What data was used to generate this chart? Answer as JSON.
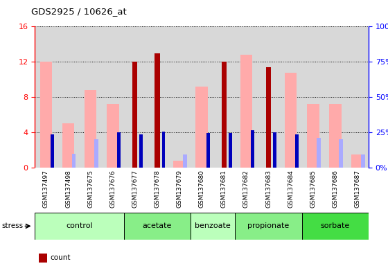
{
  "title": "GDS2925 / 10626_at",
  "samples": [
    "GSM137497",
    "GSM137498",
    "GSM137675",
    "GSM137676",
    "GSM137677",
    "GSM137678",
    "GSM137679",
    "GSM137680",
    "GSM137681",
    "GSM137682",
    "GSM137683",
    "GSM137684",
    "GSM137685",
    "GSM137686",
    "GSM137687"
  ],
  "count_values": [
    0,
    0,
    0,
    0,
    12.0,
    13.0,
    0,
    0,
    12.0,
    0,
    11.4,
    0,
    0,
    0,
    0
  ],
  "rank_values": [
    3.8,
    0,
    0,
    4.0,
    3.8,
    4.1,
    0,
    3.9,
    3.9,
    4.2,
    4.0,
    3.8,
    0,
    0,
    0
  ],
  "value_absent": [
    12.0,
    5.0,
    8.8,
    7.2,
    0,
    0,
    0.8,
    9.2,
    0,
    12.8,
    0,
    10.8,
    7.2,
    7.2,
    1.5
  ],
  "rank_absent": [
    0,
    1.6,
    3.2,
    0,
    0,
    0,
    1.5,
    0,
    0,
    0,
    0,
    0,
    3.4,
    3.2,
    1.5
  ],
  "groups": [
    {
      "label": "control",
      "start": 0,
      "end": 4,
      "color": "#bbffbb"
    },
    {
      "label": "acetate",
      "start": 4,
      "end": 7,
      "color": "#88ee88"
    },
    {
      "label": "benzoate",
      "start": 7,
      "end": 9,
      "color": "#bbffbb"
    },
    {
      "label": "propionate",
      "start": 9,
      "end": 12,
      "color": "#88ee88"
    },
    {
      "label": "sorbate",
      "start": 12,
      "end": 15,
      "color": "#44dd44"
    }
  ],
  "ylim_left": [
    0,
    16
  ],
  "ylim_right": [
    0,
    100
  ],
  "yticks_left": [
    0,
    4,
    8,
    12,
    16
  ],
  "yticks_right": [
    0,
    25,
    50,
    75,
    100
  ],
  "count_color": "#aa0000",
  "rank_color": "#0000bb",
  "value_absent_color": "#ffaaaa",
  "rank_absent_color": "#aaaaff",
  "plot_bg": "#d8d8d8",
  "sample_bg": "#d0d0d0"
}
